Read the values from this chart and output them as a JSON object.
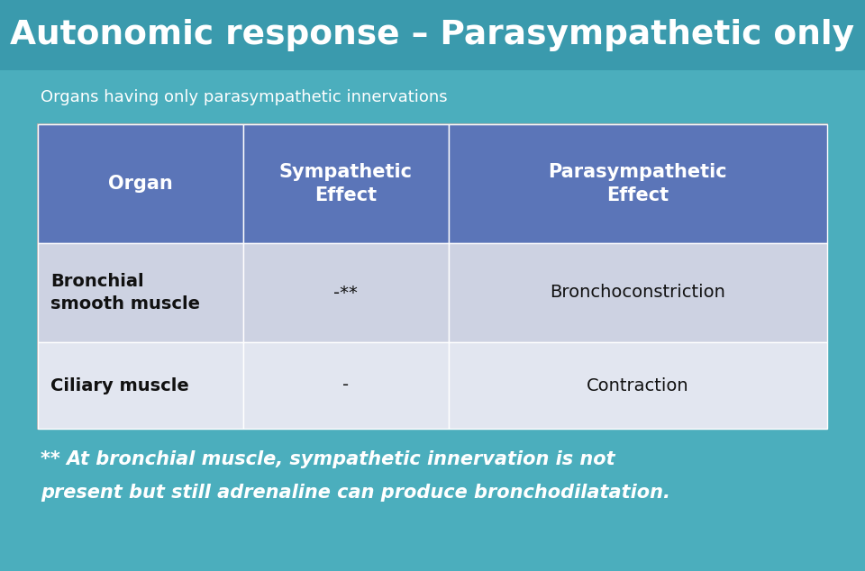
{
  "title": "Autonomic response – Parasympathetic only",
  "subtitle": "Organs having only parasympathetic innervations",
  "bg_color": "#4BAEBD",
  "title_bg_color": "#3A9AAD",
  "title_text_color": "#FFFFFF",
  "subtitle_text_color": "#FFFFFF",
  "header_bg_color": "#5B75B8",
  "header_text_color": "#FFFFFF",
  "row1_bg_color": "#CDD2E2",
  "row2_bg_color": "#E2E6F0",
  "col_headers": [
    "Organ",
    "Sympathetic\nEffect",
    "Parasympathetic\nEffect"
  ],
  "rows": [
    [
      "Bronchial\nsmooth muscle",
      "-**",
      "Bronchoconstriction"
    ],
    [
      "Ciliary muscle",
      "-",
      "Contraction"
    ]
  ],
  "footnote_line1": "** At bronchial muscle, sympathetic innervation is not",
  "footnote_line2": "present but still adrenaline can produce bronchodilatation."
}
